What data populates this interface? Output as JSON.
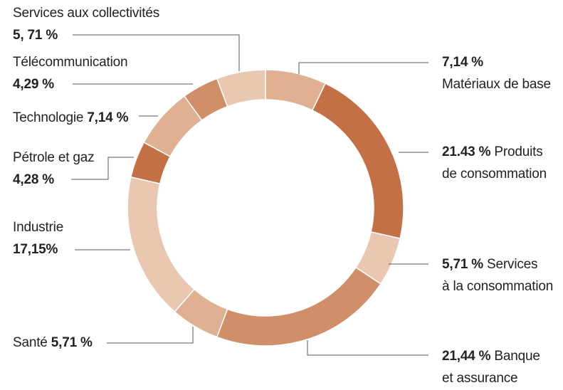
{
  "chart_data": {
    "type": "pie",
    "variant": "donut",
    "title": "",
    "slices": [
      {
        "name": "Matériaux de base",
        "value": 7.14,
        "value_text": "7,14 %",
        "color": "#dfb092"
      },
      {
        "name": "Produits de consommation",
        "value": 21.43,
        "value_text": "21.43 %",
        "color": "#c47047"
      },
      {
        "name": "Services à la consommation",
        "value": 5.71,
        "value_text": "5,71 %",
        "color": "#e9c7b1"
      },
      {
        "name": "Banque et assurance",
        "value": 21.44,
        "value_text": "21,44 %",
        "color": "#d08e69"
      },
      {
        "name": "Santé",
        "value": 5.71,
        "value_text": "5,71 %",
        "color": "#dfb092"
      },
      {
        "name": "Industrie",
        "value": 17.15,
        "value_text": "17,15%",
        "color": "#e9c7b1"
      },
      {
        "name": "Pétrole et gaz",
        "value": 4.28,
        "value_text": "4,28 %",
        "color": "#c47047"
      },
      {
        "name": "Technologie",
        "value": 7.14,
        "value_text": "7,14 %",
        "color": "#dfb092"
      },
      {
        "name": "Télécommunication",
        "value": 4.29,
        "value_text": "4,29 %",
        "color": "#d08e69"
      },
      {
        "name": "Services aux collectivités",
        "value": 5.71,
        "value_text": "5, 71 %",
        "color": "#e9c7b1"
      }
    ]
  },
  "labels": {
    "materiaux": {
      "value": "7,14 %",
      "name": "Matériaux de base"
    },
    "produits": {
      "value": "21.43 %",
      "name1": "Produits",
      "name2": "de consommation"
    },
    "services_conso": {
      "value": "5,71 %",
      "name1": "Services",
      "name2": "à la consommation"
    },
    "banque": {
      "value": "21,44 %",
      "name1": "Banque",
      "name2": "et assurance"
    },
    "sante": {
      "name": "Santé",
      "value": "5,71 %"
    },
    "industrie": {
      "name": "Industrie",
      "value": "17,15%"
    },
    "petrole": {
      "name": "Pétrole et gaz",
      "value": "4,28 %"
    },
    "technologie": {
      "name": "Technologie",
      "value": "7,14 %"
    },
    "telecom": {
      "name": "Télécommunication",
      "value": "4,29 %"
    },
    "services_coll": {
      "name": "Services aux collectivités",
      "value": "5, 71 %"
    }
  },
  "colors": {
    "leader_line": "#555555",
    "text": "#222222",
    "slice_border": "#ffffff"
  }
}
